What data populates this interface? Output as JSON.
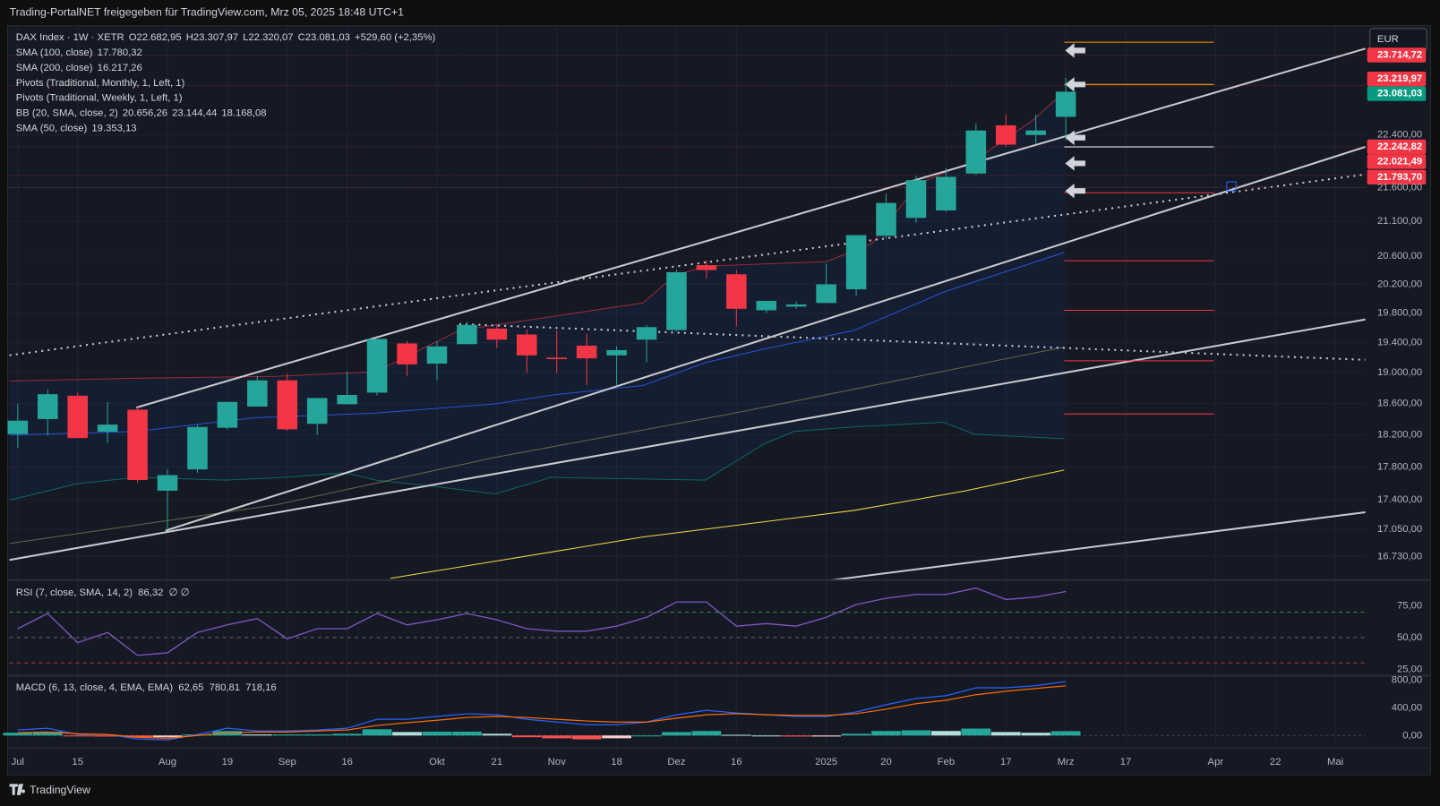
{
  "header": {
    "title": "Trading-PortalNET freigegeben für TradingView.com, Mrz 05, 2025 18:48 UTC+1"
  },
  "footer": {
    "brand": "TradingView"
  },
  "currency": "EUR",
  "legend": [
    [
      {
        "text": "DAX Index · 1W · XETR",
        "color": "#d1d4dc"
      },
      {
        "text": "O",
        "color": "#d1d4dc"
      },
      {
        "text": "22.682,95",
        "color": "#26a69a"
      },
      {
        "text": "H",
        "color": "#d1d4dc"
      },
      {
        "text": "23.307,97",
        "color": "#26a69a"
      },
      {
        "text": "L",
        "color": "#d1d4dc"
      },
      {
        "text": "22.320,07",
        "color": "#26a69a"
      },
      {
        "text": "C",
        "color": "#d1d4dc"
      },
      {
        "text": "23.081,03",
        "color": "#26a69a"
      },
      {
        "text": "+529,60 (+2,35%)",
        "color": "#26a69a"
      }
    ],
    [
      {
        "text": "SMA (100, close)",
        "color": "#d1d4dc"
      },
      {
        "text": "17.780,32",
        "color": "#f7d94a"
      }
    ],
    [
      {
        "text": "SMA (200, close)",
        "color": "#d1d4dc"
      },
      {
        "text": "16.217,26",
        "color": "#f7d94a"
      }
    ],
    [
      {
        "text": "Pivots (Traditional, Monthly, 1, Left, 1)",
        "color": "#d1d4dc"
      }
    ],
    [
      {
        "text": "Pivots (Traditional, Weekly, 1, Left, 1)",
        "color": "#d1d4dc"
      }
    ],
    [
      {
        "text": "BB (20, SMA, close, 2)",
        "color": "#d1d4dc"
      },
      {
        "text": "20.656,26",
        "color": "#2962ff"
      },
      {
        "text": "23.144,44",
        "color": "#f23645"
      },
      {
        "text": "18.168,08",
        "color": "#089981"
      }
    ],
    [
      {
        "text": "SMA (50, close)",
        "color": "#d1d4dc"
      },
      {
        "text": "19.353,13",
        "color": "#f7e28a"
      }
    ]
  ],
  "price_labels": [
    {
      "text": "23.714,72",
      "color": "#f23645"
    },
    {
      "text": "23.219,97",
      "color": "#f23645"
    },
    {
      "text": "23.081,03",
      "color": "#089981"
    },
    {
      "text": "22.242,82",
      "color": "#f23645"
    },
    {
      "text": "22.021,49",
      "color": "#f23645"
    },
    {
      "text": "21.793,70",
      "color": "#f23645"
    }
  ],
  "chart_data": {
    "type": "candlestick",
    "log_scale": true,
    "grid": true,
    "up_color": "#26a69a",
    "down_color": "#f23645",
    "categories": [
      "Jul",
      null,
      "15",
      null,
      null,
      "Aug",
      null,
      "19",
      null,
      "Sep",
      null,
      "16",
      null,
      null,
      "Okt",
      null,
      "21",
      null,
      "Nov",
      null,
      "18",
      null,
      "Dez",
      null,
      "16",
      null,
      null,
      "2025",
      null,
      "20",
      null,
      "Feb",
      null,
      "17",
      null,
      "Mrz",
      null,
      "17",
      null,
      null,
      "Apr",
      null,
      "22",
      null,
      "Mai"
    ],
    "open": [
      18210,
      18400,
      18700,
      18240,
      18520,
      17510,
      17770,
      18290,
      18560,
      18900,
      18340,
      18590,
      18740,
      19390,
      19120,
      19380,
      19590,
      19510,
      19200,
      19360,
      19230,
      19440,
      19570,
      20470,
      20340,
      19840,
      19890,
      19940,
      20130,
      20890,
      21150,
      21260,
      21810,
      22550,
      22400,
      22682.95,
      null,
      null,
      null,
      null,
      null,
      null,
      null,
      null,
      null
    ],
    "high": [
      18600,
      18780,
      18740,
      18620,
      18560,
      17770,
      18330,
      18620,
      18960,
      18990,
      18670,
      19020,
      19450,
      19420,
      19420,
      19680,
      19640,
      19580,
      19560,
      19520,
      19350,
      19640,
      20400,
      20540,
      20400,
      19970,
      19960,
      20490,
      20900,
      21510,
      21780,
      21890,
      22580,
      22720,
      22720,
      23307.97,
      null,
      null,
      null,
      null,
      null,
      null,
      null,
      null,
      null
    ],
    "low": [
      18040,
      18190,
      18160,
      18100,
      17610,
      17040,
      17730,
      18270,
      18560,
      18250,
      18200,
      18590,
      18700,
      18960,
      18900,
      19380,
      19330,
      19000,
      19000,
      18840,
      18840,
      19140,
      19550,
      20280,
      19620,
      19800,
      19860,
      19940,
      20040,
      20850,
      21080,
      21240,
      21790,
      22220,
      22250,
      22320.07,
      null,
      null,
      null,
      null,
      null,
      null,
      null,
      null,
      null
    ],
    "close": [
      18380,
      18720,
      18160,
      18330,
      17640,
      17700,
      18300,
      18620,
      18900,
      18270,
      18670,
      18710,
      19450,
      19110,
      19350,
      19640,
      19440,
      19230,
      19180,
      19190,
      19300,
      19610,
      20370,
      20400,
      19860,
      19970,
      19920,
      20200,
      20900,
      21370,
      21710,
      21760,
      22470,
      22250,
      22470,
      23081.03,
      null,
      null,
      null,
      null,
      null,
      null,
      null,
      null,
      null
    ],
    "ylim": [
      16500,
      24130
    ],
    "yticks": [
      {
        "value": 16730,
        "label": "16.730,00"
      },
      {
        "value": 17050,
        "label": "17.050,00"
      },
      {
        "value": 17400,
        "label": "17.400,00"
      },
      {
        "value": 17800,
        "label": "17.800,00"
      },
      {
        "value": 18200,
        "label": "18.200,00"
      },
      {
        "value": 18600,
        "label": "18.600,00"
      },
      {
        "value": 19000,
        "label": "19.000,00"
      },
      {
        "value": 19400,
        "label": "19.400,00"
      },
      {
        "value": 19800,
        "label": "19.800,00"
      },
      {
        "value": 20200,
        "label": "20.200,00"
      },
      {
        "value": 20600,
        "label": "20.600,00"
      },
      {
        "value": 21100,
        "label": "21.100,00"
      },
      {
        "value": 21600,
        "label": "21.600,00"
      },
      {
        "value": 22400,
        "label": "22.400,00"
      }
    ]
  },
  "rsi": {
    "legend": "RSI (7, close, SMA, 14, 2)",
    "value_text": "86,32",
    "extra": "∅ ∅",
    "color": "#7e57c2",
    "values": [
      57,
      69,
      46,
      54,
      36,
      38,
      54,
      60,
      65,
      49,
      57,
      57,
      69,
      60,
      64,
      69,
      64,
      57,
      55,
      55,
      59,
      66,
      78,
      78,
      59,
      61,
      59,
      66,
      76,
      81,
      84,
      84,
      89,
      80,
      82,
      86.32
    ],
    "bands": [
      70,
      50,
      30
    ],
    "ylim": [
      20.7,
      93.8
    ],
    "yticks": [
      {
        "value": 25,
        "label": "25,00"
      },
      {
        "value": 50,
        "label": "50,00"
      },
      {
        "value": 75,
        "label": "75,00"
      }
    ]
  },
  "macd": {
    "legend": "MACD (6, 13, close, 4, EMA, EMA)",
    "hist_text": "62,65",
    "macd_text": "780,81",
    "signal_text": "718,16",
    "macd_color": "#2962ff",
    "signal_color": "#ff6d00",
    "hist": [
      40,
      55,
      -10,
      -15,
      -25,
      -25,
      15,
      65,
      15,
      15,
      15,
      25,
      90,
      50,
      55,
      55,
      25,
      -25,
      -40,
      -55,
      -40,
      0,
      50,
      65,
      10,
      0,
      -15,
      -15,
      25,
      65,
      75,
      65,
      100,
      50,
      40,
      62.65
    ],
    "macd": [
      80,
      105,
      15,
      15,
      -50,
      -65,
      15,
      105,
      65,
      65,
      80,
      105,
      235,
      235,
      275,
      315,
      300,
      235,
      195,
      155,
      155,
      195,
      300,
      365,
      325,
      300,
      275,
      275,
      340,
      445,
      535,
      575,
      690,
      690,
      720,
      780.81
    ],
    "signal": [
      40,
      50,
      25,
      15,
      -25,
      -40,
      0,
      40,
      50,
      50,
      65,
      80,
      145,
      185,
      220,
      260,
      275,
      260,
      235,
      210,
      195,
      195,
      250,
      300,
      315,
      300,
      290,
      290,
      315,
      380,
      460,
      510,
      590,
      640,
      680,
      718.16
    ],
    "ylim": [
      -223,
      852
    ],
    "yticks": [
      {
        "value": 0,
        "label": "0,00"
      },
      {
        "value": 400,
        "label": "400,00"
      },
      {
        "value": 800,
        "label": "800,00"
      }
    ]
  }
}
